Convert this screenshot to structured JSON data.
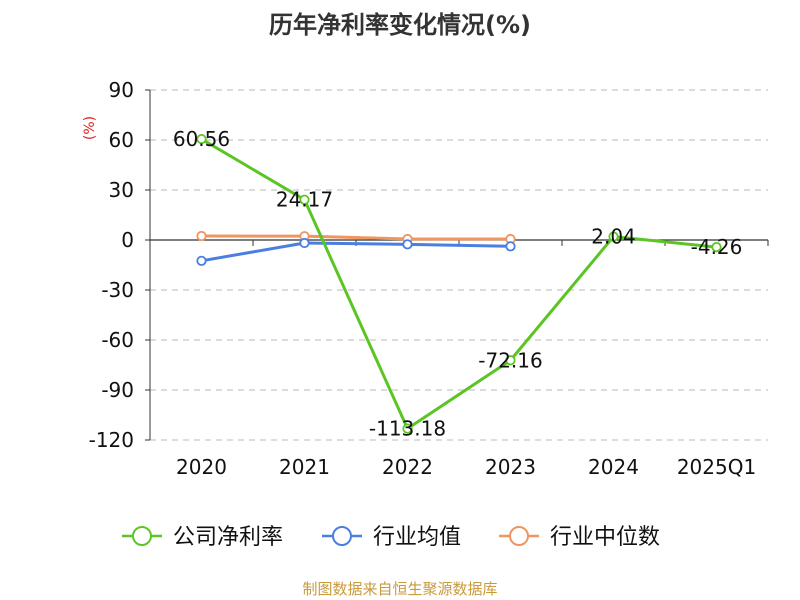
{
  "chart_data": {
    "type": "line",
    "title": "历年净利率变化情况(%)",
    "ylabel": "(%)",
    "xlabel": "",
    "categories": [
      "2020",
      "2021",
      "2022",
      "2023",
      "2024",
      "2025Q1"
    ],
    "yticks": [
      "90",
      "60",
      "30",
      "0",
      "-30",
      "-60",
      "-90",
      "-120"
    ],
    "ylim": [
      -120,
      90
    ],
    "grid": true,
    "legend_position": "bottom",
    "series": [
      {
        "name": "公司净利率",
        "color": "#5cc524",
        "values": [
          60.56,
          24.17,
          -113.18,
          -72.16,
          2.04,
          -4.26
        ],
        "labels": [
          "60.56",
          "24.17",
          "-113.18",
          "-72.16",
          "2.04",
          "-4.26"
        ]
      },
      {
        "name": "行业均值",
        "color": "#4a7fe0",
        "values": [
          -12.5,
          -1.8,
          -2.6,
          -3.8,
          null,
          null
        ]
      },
      {
        "name": "行业中位数",
        "color": "#f09560",
        "values": [
          2.4,
          2.3,
          0.6,
          0.6,
          null,
          null
        ]
      }
    ]
  },
  "source": "制图数据来自恒生聚源数据库",
  "colors": {
    "title": "#333333",
    "ylabel": "#e02020",
    "source": "#c89a3c",
    "grid": "#c8c8c8",
    "axis": "#333333",
    "text": "#111111"
  }
}
